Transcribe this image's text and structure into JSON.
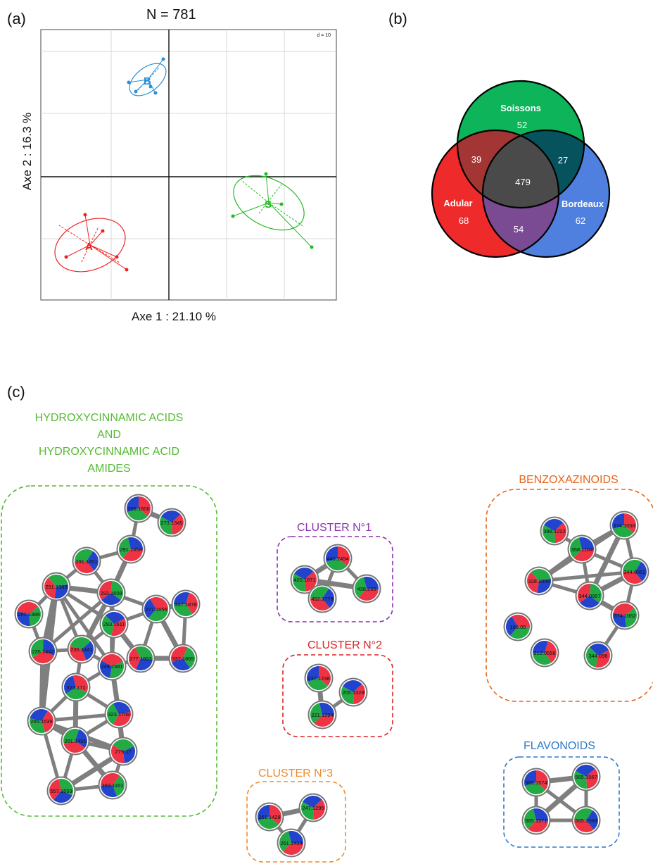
{
  "panels": {
    "a": "(a)",
    "b": "(b)",
    "c": "(c)"
  },
  "pca": {
    "title": "N = 781",
    "scale": "d = 10",
    "x_axis_label": "Axe 1 : 21.10 %",
    "y_axis_label": "Axe 2 : 16.3 %",
    "groups": [
      {
        "label": "B",
        "color": "#2a8fd6"
      },
      {
        "label": "S",
        "color": "#22bb22"
      },
      {
        "label": "A",
        "color": "#ee2222"
      }
    ]
  },
  "venn": {
    "sets": [
      {
        "name": "Soissons",
        "only": "52",
        "color": "#0db45a"
      },
      {
        "name": "Adular",
        "only": "68",
        "color": "#ee2a2a"
      },
      {
        "name": "Bordeaux",
        "only": "62",
        "color": "#4f80e0"
      }
    ],
    "adular_soissons": "39",
    "soissons_bordeaux": "27",
    "adular_bordeaux": "54",
    "all_three": "479"
  },
  "network": {
    "pie_colors": [
      "#ee3344",
      "#22aa44",
      "#2244cc"
    ],
    "groups": [
      {
        "key": "hca",
        "title_lines": [
          "HYDROXYCINNAMIC ACIDS",
          "AND",
          "HYDROXYCINNAMIC ACID",
          "AMIDES"
        ],
        "color": "#55bb33",
        "nodes": [
          "305.1606",
          "273.1345",
          "291.1454",
          "291.1451",
          "251.1389",
          "293.1608",
          "251.1389",
          "277.1656",
          "337.1878",
          "293.1611",
          "235.1442",
          "235.1441",
          "277.1653",
          "337.1865",
          "249.1581",
          "323.171",
          "265.1539",
          "323.1709",
          "281.1491",
          "279.17",
          "557.1659",
          "369.1161"
        ]
      },
      {
        "key": "c1",
        "title_lines": [
          "CLUSTER N°1"
        ],
        "color": "#8833aa",
        "nodes": [
          "440.2494",
          "420.1871",
          "438.235",
          "452.1778"
        ]
      },
      {
        "key": "c2",
        "title_lines": [
          "CLUSTER N°2"
        ],
        "color": "#dd2222",
        "nodes": [
          "237.1238",
          "205.1328",
          "221.1294"
        ]
      },
      {
        "key": "c3",
        "title_lines": [
          "CLUSTER N°3"
        ],
        "color": "#f08a2a",
        "nodes": [
          "261.1428",
          "247.1295",
          "261.1434"
        ]
      },
      {
        "key": "benz",
        "title_lines": [
          "BENZOXAZINOIDS"
        ],
        "color": "#e8631a",
        "nodes": [
          "374.1056",
          "388.1222",
          "358.1164",
          "344.0952",
          "328.1006",
          "344.0957",
          "374.1062",
          "166.05",
          "212.0556",
          "344.096"
        ]
      },
      {
        "key": "flav",
        "title_lines": [
          "FLAVONOIDS"
        ],
        "color": "#2a7ac8",
        "nodes": [
          "565.1574",
          "565.1567",
          "565.1571",
          "565.1566"
        ]
      }
    ]
  }
}
